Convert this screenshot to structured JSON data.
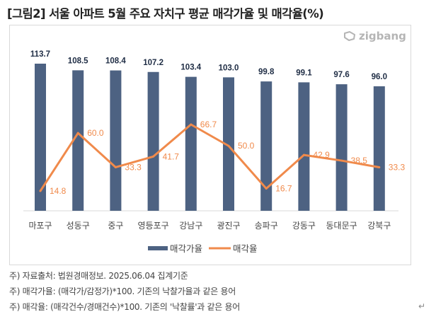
{
  "title": "[그림2] 서울 아파트 5월 주요 자치구 평균 매각가율 및 매각율(%)",
  "logo": {
    "icon": "zigbang-logo-icon",
    "text": "zigbang"
  },
  "chart_data": {
    "type": "bar+line",
    "title": "[그림2] 서울 아파트 5월 주요 자치구 평균 매각가율 및 매각율(%)",
    "categories": [
      "마포구",
      "성동구",
      "중구",
      "영등포구",
      "강남구",
      "광진구",
      "송파구",
      "강동구",
      "동대문구",
      "강북구"
    ],
    "series": [
      {
        "name": "매각가율",
        "type": "bar",
        "color": "#4d6282",
        "values": [
          113.7,
          108.5,
          108.4,
          107.2,
          103.4,
          103.0,
          99.8,
          99.1,
          97.6,
          96.0
        ]
      },
      {
        "name": "매각율",
        "type": "line",
        "color": "#f08a4b",
        "values": [
          14.8,
          60.0,
          33.3,
          41.7,
          66.7,
          50.0,
          16.7,
          42.9,
          38.5,
          33.3
        ]
      }
    ],
    "legend": "bottom",
    "grid": false,
    "xlabel": "",
    "ylabel": ""
  },
  "legend": [
    {
      "label": "매각가율",
      "kind": "bar",
      "color": "#4d6282"
    },
    {
      "label": "매각율",
      "kind": "line",
      "color": "#f08a4b"
    }
  ],
  "notes": [
    "주) 자료출처: 법원경매정보. 2025.06.04 집계기준",
    "주) 매각가율: (매각가/감정가)*100. 기존의 낙찰가율과 같은 용어",
    "주) 매각율: (매각건수/경매건수)*100. 기존의 '낙찰률'과 같은 용어"
  ],
  "return_mark": "↵"
}
